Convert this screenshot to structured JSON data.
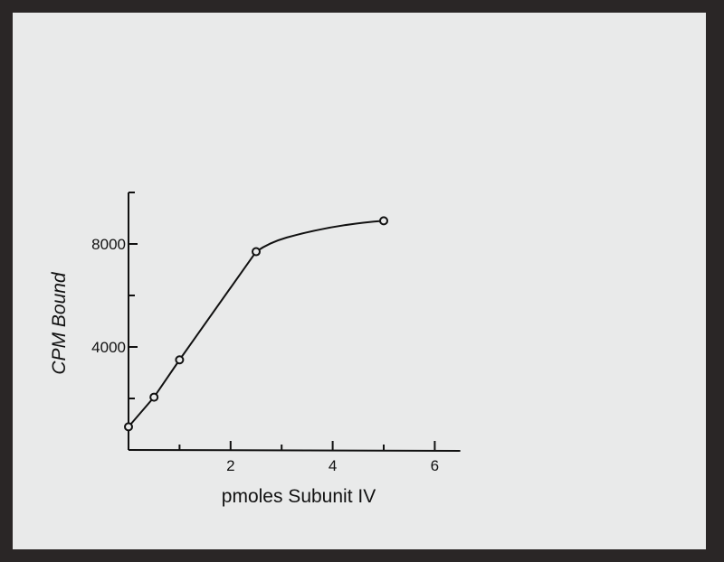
{
  "chart_data": {
    "type": "line",
    "title": "",
    "xlabel": "pmoles Subunit IV",
    "ylabel": "CPM Bound",
    "xlim": [
      0,
      6.5
    ],
    "ylim": [
      0,
      10000
    ],
    "x_ticks": [
      2,
      4,
      6
    ],
    "x_tick_labels": [
      "2",
      "4",
      "6"
    ],
    "x_minor_ticks": [
      1,
      3,
      5
    ],
    "y_ticks": [
      4000,
      8000
    ],
    "y_tick_labels": [
      "4000",
      "8000"
    ],
    "y_minor_ticks": [
      2000,
      6000
    ],
    "grid": false,
    "series": [
      {
        "x": [
          0,
          0.5,
          1.0,
          2.5,
          5.0
        ],
        "y": [
          900,
          2050,
          3500,
          7700,
          8900
        ],
        "marker": "open-circle",
        "color": "#111111"
      }
    ]
  }
}
